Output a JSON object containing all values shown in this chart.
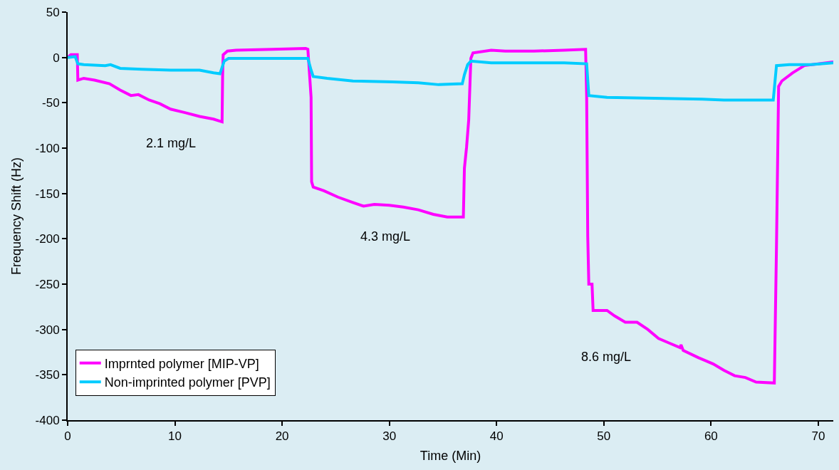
{
  "chart_data": {
    "type": "line",
    "xlabel": "Time (Min)",
    "ylabel": "Frequency Shift (Hz)",
    "xlim": [
      0,
      71.4
    ],
    "ylim": [
      -400,
      50
    ],
    "xticks": [
      0,
      10,
      20,
      30,
      40,
      50,
      60,
      70
    ],
    "yticks": [
      50,
      0,
      -50,
      -100,
      -150,
      -200,
      -250,
      -300,
      -350,
      -400
    ],
    "grid": false,
    "legend": "bottom left",
    "marker": "none",
    "line_style": "solid",
    "series": [
      {
        "name": "Imprnted polymer [MIP-VP]",
        "color": "#ff00ff",
        "x": [
          0,
          0.3,
          0.9,
          0.95,
          1.5,
          2.5,
          3.9,
          4.9,
          5.9,
          6.6,
          7.6,
          8.6,
          9.6,
          11,
          12.3,
          13.6,
          14.4,
          14.45,
          14.5,
          14.9,
          15.7,
          19.1,
          22.2,
          22.4,
          22.7,
          22.75,
          22.9,
          23.9,
          25.2,
          26.6,
          27.6,
          28.6,
          30,
          31.3,
          32.7,
          34.1,
          35.4,
          36.9,
          37,
          37.2,
          37.4,
          37.6,
          37.8,
          39.5,
          40.8,
          43.5,
          46.3,
          48.3,
          48.4,
          48.5,
          48.6,
          48.9,
          49,
          50.3,
          51,
          52,
          53.1,
          54.1,
          55.1,
          56.1,
          57.1,
          57.2,
          57.4,
          58.8,
          60.2,
          61.2,
          62.2,
          63.2,
          64.2,
          65.9,
          66.1,
          66.3,
          66.6,
          67.6,
          68.7,
          71.4
        ],
        "values": [
          0,
          3,
          3,
          -25,
          -23,
          -25,
          -29,
          -36,
          -42,
          -41,
          -47,
          -51,
          -57,
          -61,
          -65,
          -68,
          -71,
          -20,
          3,
          7,
          8,
          9,
          10,
          9,
          -44,
          -137,
          -143,
          -147,
          -154,
          -160,
          -164,
          -162,
          -163,
          -165,
          -168,
          -173,
          -176,
          -176,
          -122,
          -99,
          -69,
          -1,
          5,
          8,
          7,
          7,
          8,
          9,
          -44,
          -197,
          -250,
          -250,
          -279,
          -279,
          -285,
          -292,
          -292,
          -300,
          -310,
          -315,
          -320,
          -317,
          -323,
          -331,
          -338,
          -345,
          -351,
          -353,
          -358,
          -359,
          -210,
          -32,
          -26,
          -17,
          -9,
          -5
        ]
      },
      {
        "name": "Non-imprinted polymer [PVP]",
        "color": "#00ccff",
        "x": [
          0,
          0.7,
          0.95,
          1.5,
          3.5,
          4,
          4.9,
          6.9,
          9.6,
          12.3,
          13.6,
          14.2,
          14.6,
          15,
          21.8,
          22.4,
          22.7,
          22.9,
          24.2,
          26.6,
          30.3,
          32.7,
          34.6,
          36.8,
          37,
          37.3,
          37.6,
          39.5,
          46.3,
          48.4,
          48.6,
          50.3,
          59.2,
          61.2,
          65.8,
          66.1,
          67.3,
          69.3,
          71.4
        ],
        "values": [
          0,
          1,
          -7,
          -8,
          -9,
          -8,
          -12,
          -13,
          -14,
          -14,
          -17,
          -18,
          -4,
          -1,
          -1,
          -1,
          -14,
          -21,
          -23,
          -26,
          -27,
          -28,
          -30,
          -29,
          -19,
          -8,
          -4,
          -6,
          -6,
          -7,
          -42,
          -44,
          -46,
          -47,
          -47,
          -9,
          -8,
          -8,
          -6
        ]
      }
    ],
    "annotations": [
      "2.1 mg/L",
      "4.3 mg/L",
      "8.6 mg/L"
    ]
  }
}
